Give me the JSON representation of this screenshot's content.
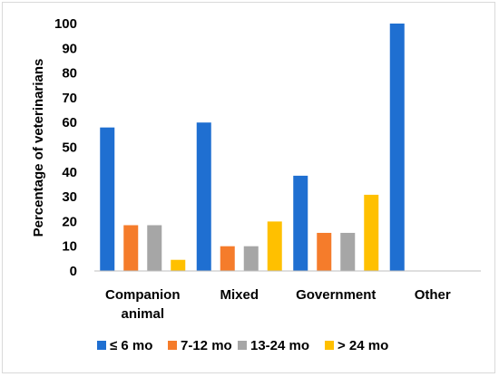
{
  "chart_data": {
    "type": "bar",
    "title": "",
    "xlabel": "",
    "ylabel": "Percentage of veterinarians",
    "ylim": [
      0,
      100
    ],
    "yticks": [
      0,
      10,
      20,
      30,
      40,
      50,
      60,
      70,
      80,
      90,
      100
    ],
    "grid": false,
    "legend_position": "bottom",
    "categories": [
      [
        "Companion",
        "animal"
      ],
      [
        "Mixed"
      ],
      [
        "Government"
      ],
      [
        "Other"
      ]
    ],
    "series": [
      {
        "name": "≤ 6 mo",
        "color": "#1f6fd1",
        "values": [
          58,
          60,
          38.5,
          100
        ]
      },
      {
        "name": "7-12 mo",
        "color": "#f57c2b",
        "values": [
          18.5,
          10,
          15.4,
          0
        ]
      },
      {
        "name": "13-24 mo",
        "color": "#a6a6a6",
        "values": [
          18.5,
          10,
          15.4,
          0
        ]
      },
      {
        "name": "> 24 mo",
        "color": "#ffc000",
        "values": [
          4.5,
          20,
          30.8,
          0
        ]
      }
    ]
  }
}
